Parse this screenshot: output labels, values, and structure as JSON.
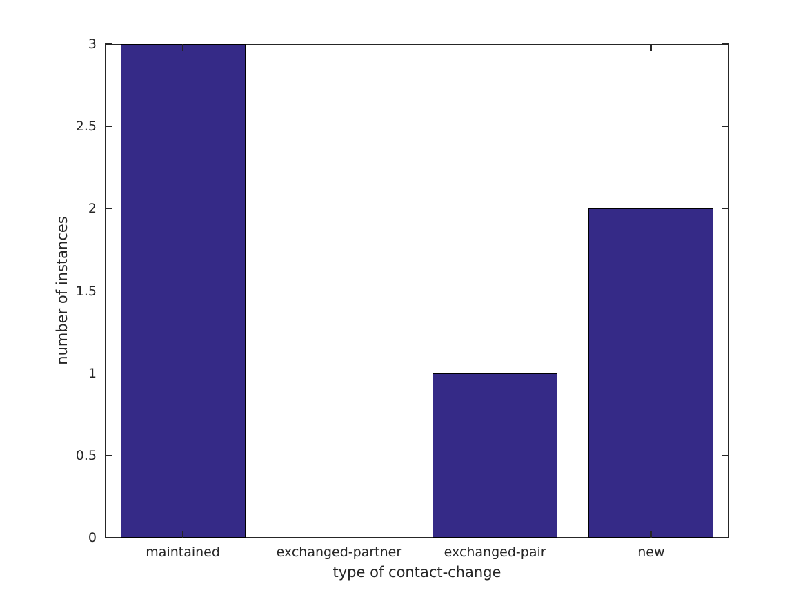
{
  "chart_data": {
    "type": "bar",
    "title": "",
    "categories": [
      "maintained",
      "exchanged-partner",
      "exchanged-pair",
      "new"
    ],
    "values": [
      3,
      0,
      1,
      2
    ],
    "xlabel": "type of contact-change",
    "ylabel": "number of instances",
    "ylim": [
      0,
      3
    ],
    "yticks": [
      0,
      0.5,
      1,
      1.5,
      2,
      2.5,
      3
    ],
    "ytick_labels": [
      "0",
      "0.5",
      "1",
      "1.5",
      "2",
      "2.5",
      "3"
    ],
    "bar_width_fraction": 0.8,
    "bar_color": "#352A87",
    "bar_edge_color": "#000000",
    "axis_color": "#262626",
    "text_color": "#262626",
    "background_color": "#ffffff",
    "grid": false,
    "box": true,
    "tick_direction": "in",
    "legend": null
  }
}
